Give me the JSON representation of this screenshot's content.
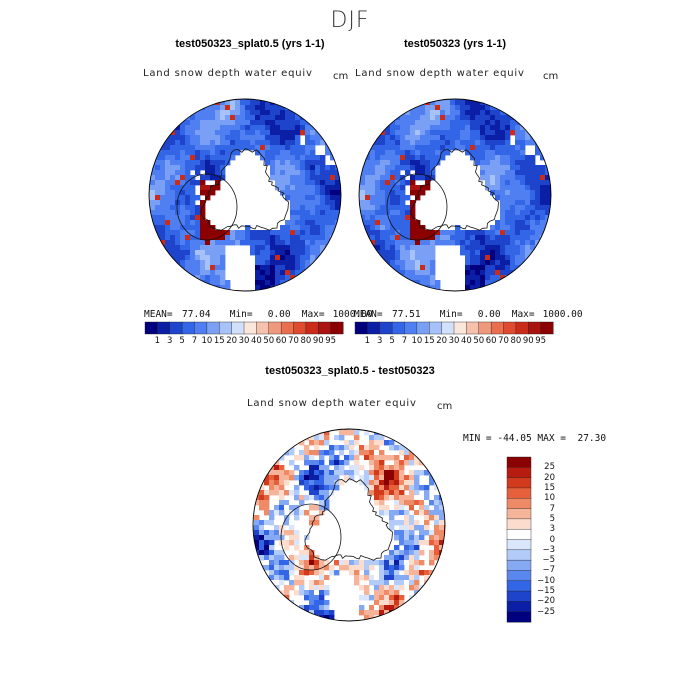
{
  "season": "DJF",
  "colors": {
    "land_scale": [
      "#00007f",
      "#0a1fa6",
      "#1f44cc",
      "#3366e6",
      "#4f7ff0",
      "#7aa0f5",
      "#a6c2f8",
      "#d2e1fb",
      "#fbe6dc",
      "#f6c2ad",
      "#f09a7d",
      "#e96f4f",
      "#e04a2e",
      "#c92c1a",
      "#a91410",
      "#8b0000"
    ],
    "diff_scale": [
      "#00007f",
      "#0a1fa6",
      "#1f44cc",
      "#3366e6",
      "#5a87ef",
      "#86a9f3",
      "#b3cbf8",
      "#d9e6fb",
      "#ffffff",
      "#fbdccd",
      "#f6b59a",
      "#ef8a66",
      "#e5603b",
      "#d23a1e",
      "#b81c10",
      "#8b0000"
    ]
  },
  "chart_data": [
    {
      "type": "heatmap",
      "title": "test050323_splat0.5 (yrs 1-1)",
      "field_label": "Land snow depth water equiv",
      "units": "cm",
      "projection": "north polar stereographic",
      "mean_label": "MEAN=",
      "mean": "77.04",
      "min_label": "Min=",
      "min": "0.00",
      "max_label": "Max=",
      "max": "1000.00",
      "colorbar_ticks": [
        "1",
        "3",
        "5",
        "7",
        "10",
        "15",
        "20",
        "30",
        "40",
        "50",
        "60",
        "70",
        "80",
        "90",
        "95"
      ]
    },
    {
      "type": "heatmap",
      "title": "test050323 (yrs 1-1)",
      "field_label": "Land snow depth water equiv",
      "units": "cm",
      "projection": "north polar stereographic",
      "mean_label": "MEAN=",
      "mean": "77.51",
      "min_label": "Min=",
      "min": "0.00",
      "max_label": "Max=",
      "max": "1000.00",
      "colorbar_ticks": [
        "1",
        "3",
        "5",
        "7",
        "10",
        "15",
        "20",
        "30",
        "40",
        "50",
        "60",
        "70",
        "80",
        "90",
        "95"
      ]
    },
    {
      "type": "heatmap",
      "title": "test050323_splat0.5 - test050323",
      "field_label": "Land snow depth water equiv",
      "units": "cm",
      "projection": "north polar stereographic",
      "min_label": "MIN =",
      "min": "-44.05",
      "max_label": "MAX =",
      "max": "27.30",
      "colorbar_ticks": [
        "25",
        "20",
        "15",
        "10",
        "7",
        "5",
        "3",
        "0",
        "−3",
        "−5",
        "−7",
        "−10",
        "−15",
        "−20",
        "−25"
      ]
    }
  ]
}
